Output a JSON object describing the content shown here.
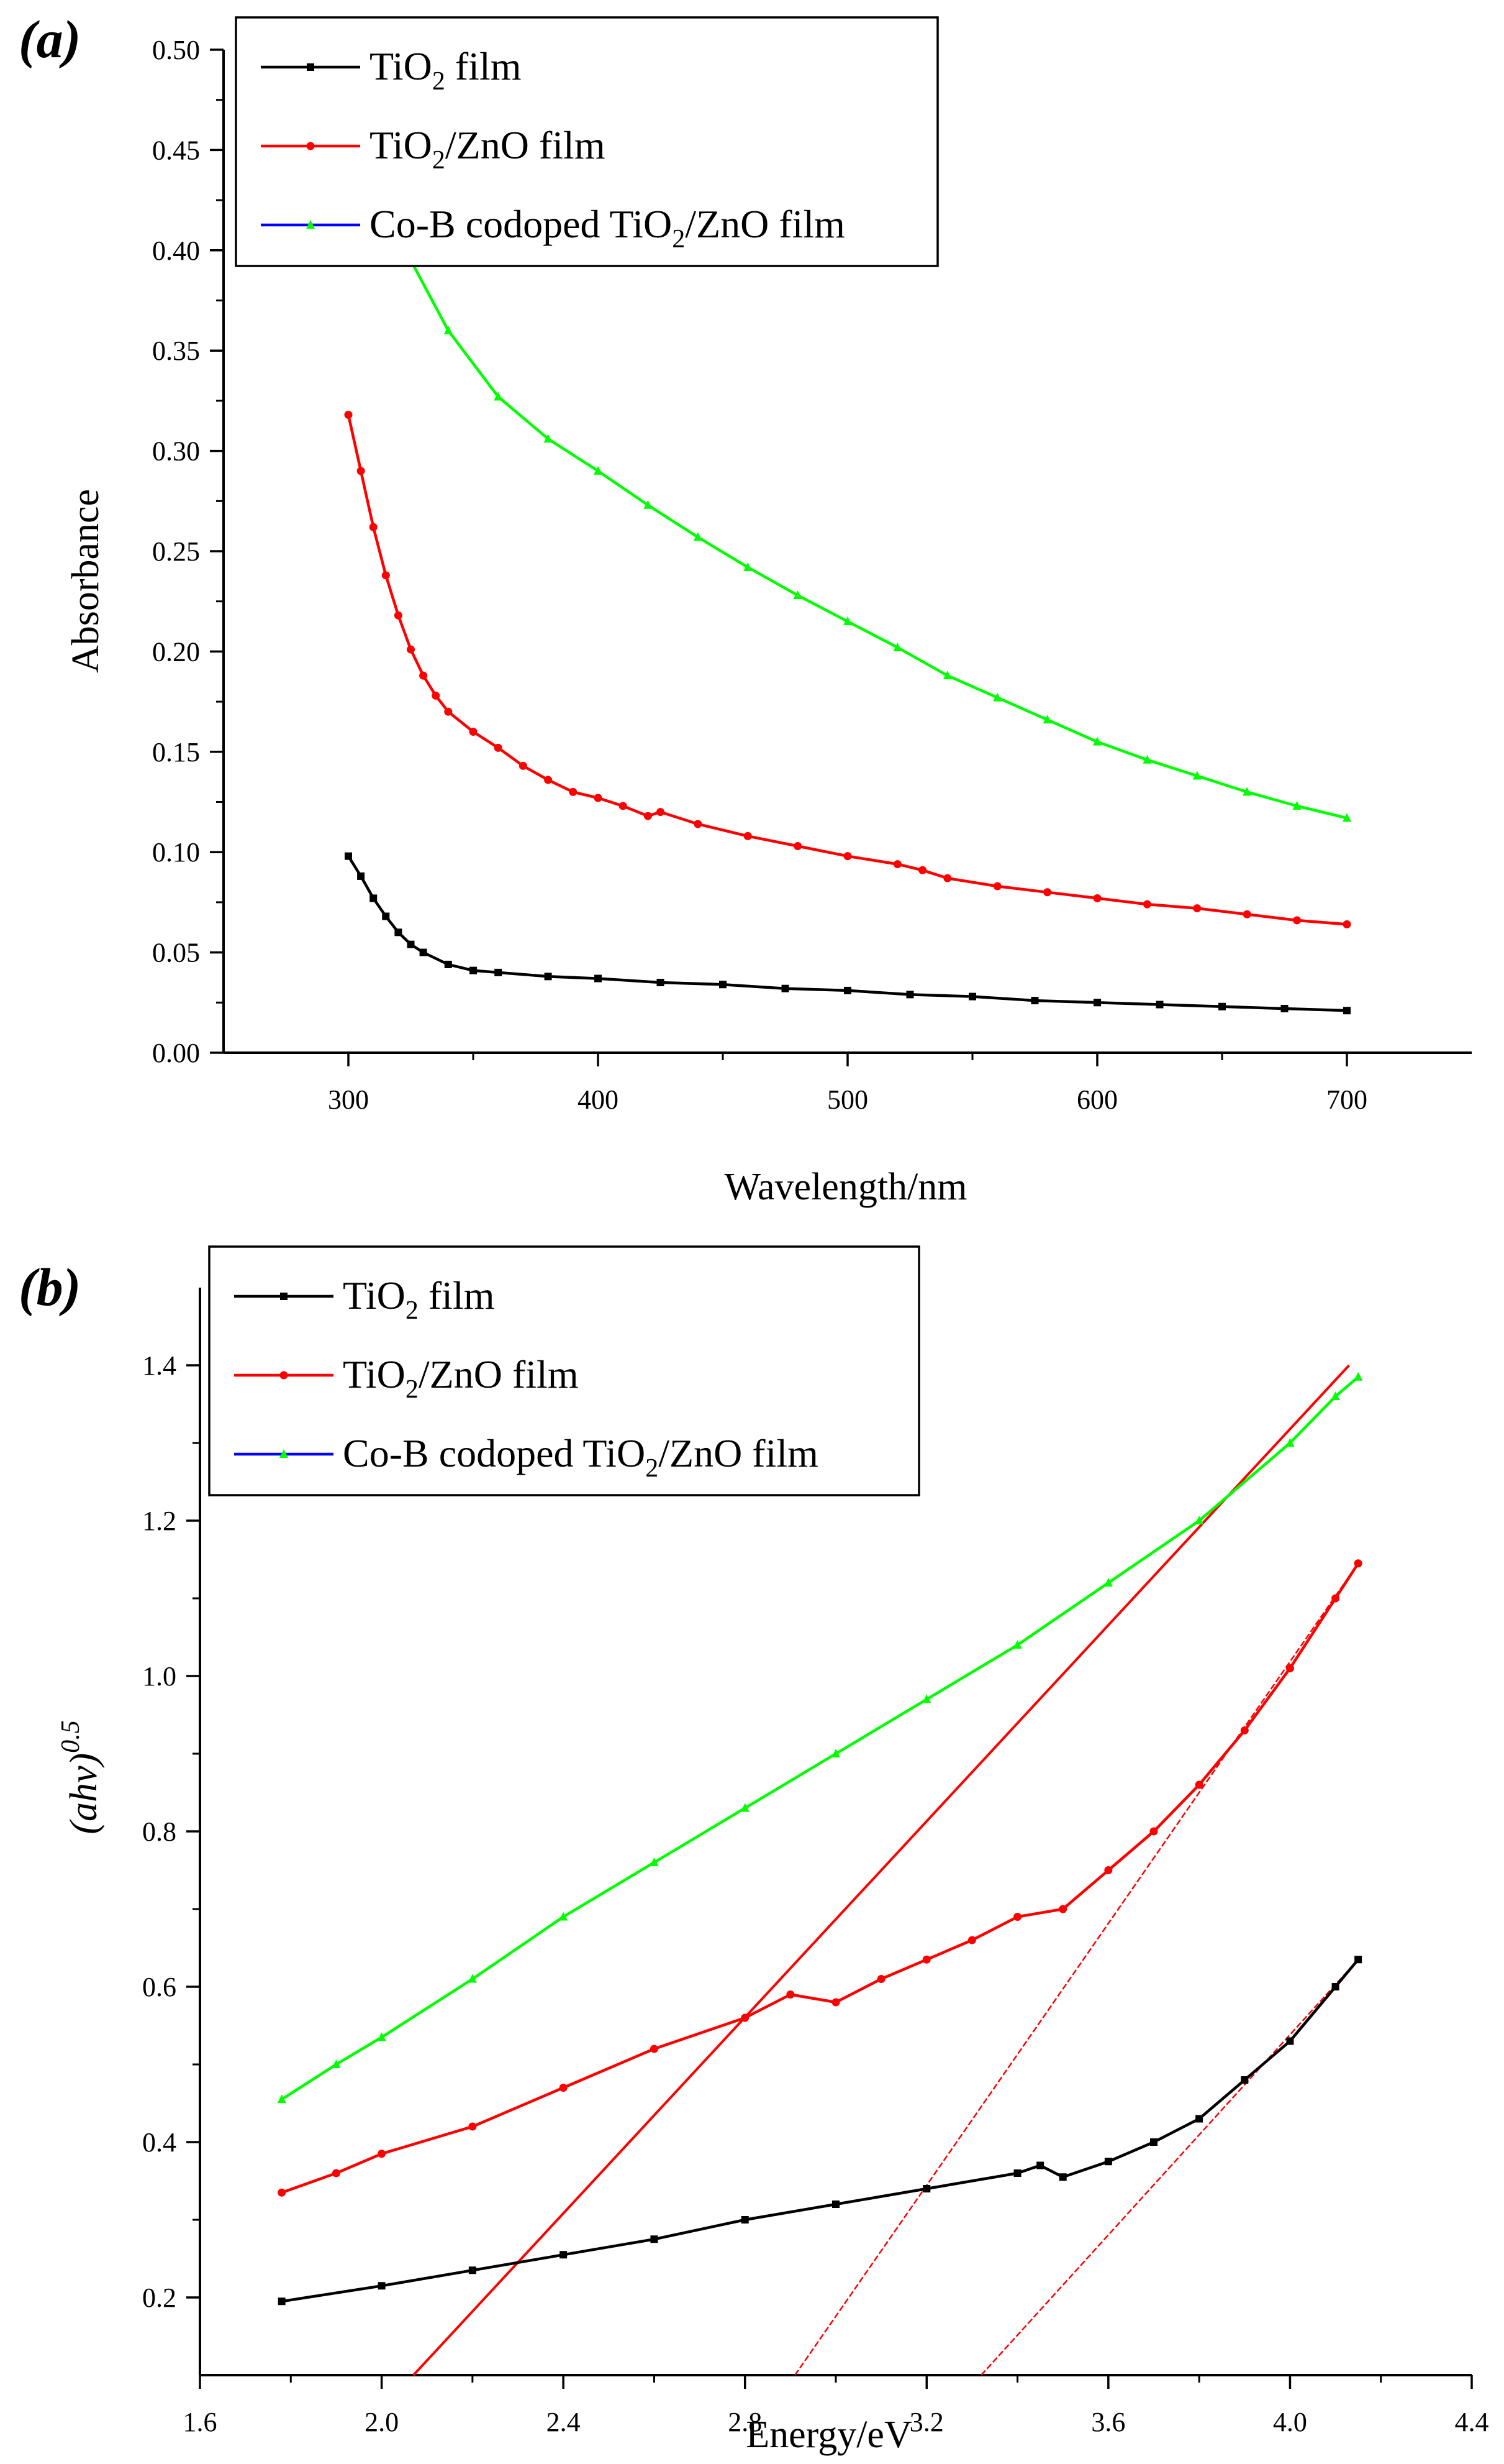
{
  "series_styles": [
    {
      "color": "#000000",
      "marker": "square"
    },
    {
      "color": "#ff0000",
      "marker": "circle"
    },
    {
      "color": "#00ff00",
      "line_color": "#0000ff",
      "marker": "triangle"
    }
  ],
  "chart_data": [
    {
      "panel_label": "(a)",
      "type": "line",
      "xlabel": "Wavelength/nm",
      "ylabel": "Absorbance",
      "xlim": [
        250,
        750
      ],
      "ylim": [
        0.0,
        0.5
      ],
      "x_ticks": [
        300,
        400,
        500,
        600,
        700
      ],
      "x_tick_labels": [
        "300",
        "400",
        "500",
        "600",
        "700"
      ],
      "y_ticks": [
        0.0,
        0.05,
        0.1,
        0.15,
        0.2,
        0.25,
        0.3,
        0.35,
        0.4,
        0.45,
        0.5
      ],
      "y_tick_labels": [
        "0.00",
        "0.05",
        "0.10",
        "0.15",
        "0.20",
        "0.25",
        "0.30",
        "0.35",
        "0.40",
        "0.45",
        "0.50"
      ],
      "grid": false,
      "legend_position": "top-left",
      "series": [
        {
          "legend_main": "TiO",
          "legend_sub": "2",
          "legend_rest": " film",
          "x": [
            300,
            305,
            310,
            315,
            320,
            325,
            330,
            340,
            350,
            360,
            380,
            400,
            425,
            450,
            475,
            500,
            525,
            550,
            575,
            600,
            625,
            650,
            675,
            700
          ],
          "y": [
            0.098,
            0.088,
            0.077,
            0.068,
            0.06,
            0.054,
            0.05,
            0.044,
            0.041,
            0.04,
            0.038,
            0.037,
            0.035,
            0.034,
            0.032,
            0.031,
            0.029,
            0.028,
            0.026,
            0.025,
            0.024,
            0.023,
            0.022,
            0.021
          ]
        },
        {
          "legend_main": "TiO",
          "legend_sub": "2",
          "legend_rest": "/ZnO film",
          "x": [
            300,
            305,
            310,
            315,
            320,
            325,
            330,
            335,
            340,
            350,
            360,
            370,
            380,
            390,
            400,
            410,
            420,
            425,
            440,
            460,
            480,
            500,
            520,
            530,
            540,
            560,
            580,
            600,
            620,
            640,
            660,
            680,
            700
          ],
          "y": [
            0.318,
            0.29,
            0.262,
            0.238,
            0.218,
            0.201,
            0.188,
            0.178,
            0.17,
            0.16,
            0.152,
            0.143,
            0.136,
            0.13,
            0.127,
            0.123,
            0.118,
            0.12,
            0.114,
            0.108,
            0.103,
            0.098,
            0.094,
            0.091,
            0.087,
            0.083,
            0.08,
            0.077,
            0.074,
            0.072,
            0.069,
            0.066,
            0.064
          ]
        },
        {
          "legend_main": "Co-B codoped TiO",
          "legend_sub": "2",
          "legend_rest": "/ZnO film",
          "x": [
            325,
            340,
            360,
            380,
            400,
            420,
            440,
            460,
            480,
            500,
            520,
            540,
            560,
            580,
            600,
            620,
            640,
            660,
            680,
            700
          ],
          "y": [
            0.395,
            0.36,
            0.327,
            0.306,
            0.29,
            0.273,
            0.257,
            0.242,
            0.228,
            0.215,
            0.202,
            0.188,
            0.177,
            0.166,
            0.155,
            0.146,
            0.138,
            0.13,
            0.123,
            0.117
          ]
        }
      ]
    },
    {
      "panel_label": "(b)",
      "type": "line",
      "xlabel": "Energy/eV",
      "ylabel_main": "(ahv)",
      "ylabel_sup": "0.5",
      "xlim": [
        1.6,
        4.4
      ],
      "ylim": [
        0.1,
        1.5
      ],
      "x_ticks": [
        1.6,
        2.0,
        2.4,
        2.8,
        3.2,
        3.6,
        4.0,
        4.4
      ],
      "x_tick_labels": [
        "1.6",
        "2.0",
        "2.4",
        "2.8",
        "3.2",
        "3.6",
        "4.0",
        "4.4"
      ],
      "y_ticks": [
        0.2,
        0.4,
        0.6,
        0.8,
        1.0,
        1.2,
        1.4
      ],
      "y_tick_labels": [
        "0.2",
        "0.4",
        "0.6",
        "0.8",
        "1.0",
        "1.2",
        "1.4"
      ],
      "grid": false,
      "legend_position": "top-left",
      "series": [
        {
          "legend_main": "TiO",
          "legend_sub": "2",
          "legend_rest": " film",
          "x": [
            1.78,
            2.0,
            2.2,
            2.4,
            2.6,
            2.8,
            3.0,
            3.2,
            3.4,
            3.45,
            3.5,
            3.6,
            3.7,
            3.8,
            3.9,
            4.0,
            4.1,
            4.15
          ],
          "y": [
            0.195,
            0.215,
            0.235,
            0.255,
            0.275,
            0.3,
            0.32,
            0.34,
            0.36,
            0.37,
            0.355,
            0.375,
            0.4,
            0.43,
            0.48,
            0.53,
            0.6,
            0.635
          ]
        },
        {
          "legend_main": "TiO",
          "legend_sub": "2",
          "legend_rest": "/ZnO film",
          "x": [
            1.78,
            1.9,
            2.0,
            2.2,
            2.4,
            2.6,
            2.8,
            2.9,
            3.0,
            3.1,
            3.2,
            3.3,
            3.4,
            3.5,
            3.6,
            3.7,
            3.8,
            3.9,
            4.0,
            4.1,
            4.15
          ],
          "y": [
            0.335,
            0.36,
            0.385,
            0.42,
            0.47,
            0.52,
            0.56,
            0.59,
            0.58,
            0.61,
            0.635,
            0.66,
            0.69,
            0.7,
            0.75,
            0.8,
            0.86,
            0.93,
            1.01,
            1.1,
            1.145
          ]
        },
        {
          "legend_main": "Co-B codoped TiO",
          "legend_sub": "2",
          "legend_rest": "/ZnO film",
          "x": [
            1.78,
            1.9,
            2.0,
            2.2,
            2.4,
            2.6,
            2.8,
            3.0,
            3.2,
            3.4,
            3.6,
            3.8,
            4.0,
            4.1,
            4.15
          ],
          "y": [
            0.455,
            0.5,
            0.535,
            0.61,
            0.69,
            0.76,
            0.83,
            0.9,
            0.97,
            1.04,
            1.12,
            1.2,
            1.3,
            1.36,
            1.385
          ]
        }
      ],
      "tangent_lines": [
        {
          "x": [
            2.07,
            4.13
          ],
          "y": [
            0.1,
            1.4
          ]
        },
        {
          "x": [
            2.91,
            4.15
          ],
          "y": [
            0.1,
            1.145
          ]
        },
        {
          "x": [
            3.32,
            4.15
          ],
          "y": [
            0.1,
            0.635
          ]
        }
      ]
    }
  ]
}
